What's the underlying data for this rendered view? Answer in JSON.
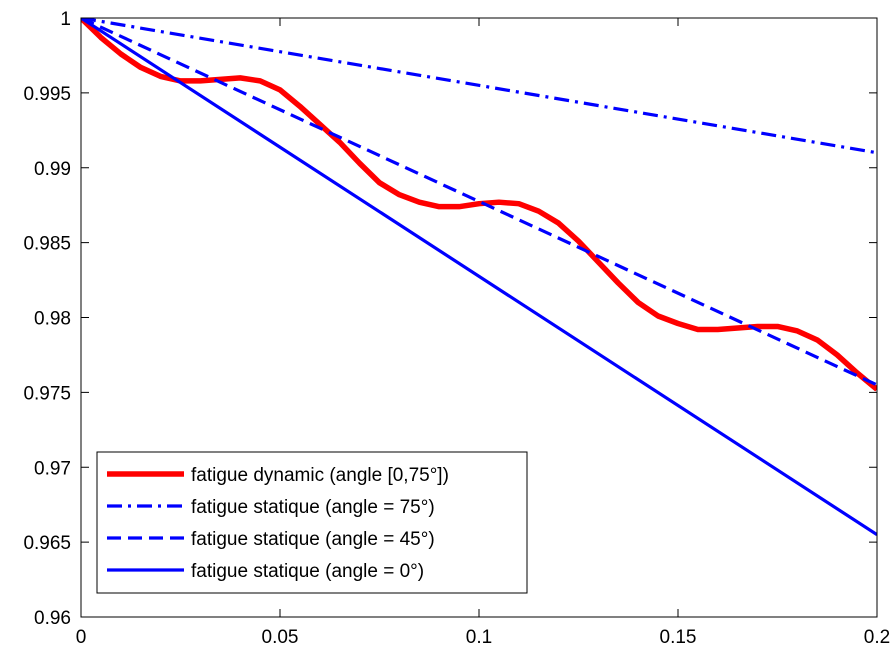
{
  "chart_data": {
    "type": "line",
    "title": "",
    "xlabel": "",
    "ylabel": "",
    "xlim": [
      0,
      0.2
    ],
    "ylim": [
      0.96,
      1
    ],
    "xticks": [
      0,
      0.05,
      0.1,
      0.15,
      0.2
    ],
    "xtick_labels": [
      "0",
      "0.05",
      "0.1",
      "0.15",
      "0.2"
    ],
    "yticks": [
      0.96,
      0.965,
      0.97,
      0.975,
      0.98,
      0.985,
      0.99,
      0.995,
      1
    ],
    "ytick_labels": [
      "0.96",
      "0.965",
      "0.97",
      "0.975",
      "0.98",
      "0.985",
      "0.99",
      "0.995",
      "1"
    ],
    "grid": false,
    "legend_position": "bottom-left",
    "series": [
      {
        "name": "fatigue dynamic (angle [0,75°])",
        "color": "#ff0000",
        "line_style": "solid-thick",
        "x": [
          0,
          0.005,
          0.01,
          0.015,
          0.02,
          0.025,
          0.03,
          0.035,
          0.04,
          0.045,
          0.05,
          0.055,
          0.06,
          0.065,
          0.07,
          0.075,
          0.08,
          0.085,
          0.09,
          0.095,
          0.1,
          0.105,
          0.11,
          0.115,
          0.12,
          0.125,
          0.13,
          0.135,
          0.14,
          0.145,
          0.15,
          0.155,
          0.16,
          0.165,
          0.17,
          0.175,
          0.18,
          0.185,
          0.19,
          0.195,
          0.2
        ],
        "y": [
          1,
          0.9987,
          0.9976,
          0.9967,
          0.9961,
          0.9958,
          0.9958,
          0.9959,
          0.996,
          0.9958,
          0.9952,
          0.9941,
          0.9929,
          0.9917,
          0.9903,
          0.989,
          0.9882,
          0.9877,
          0.9874,
          0.9874,
          0.9876,
          0.9877,
          0.9876,
          0.9871,
          0.9863,
          0.9851,
          0.9837,
          0.9823,
          0.981,
          0.9801,
          0.9796,
          0.9792,
          0.9792,
          0.9793,
          0.9794,
          0.9794,
          0.9791,
          0.9785,
          0.9775,
          0.9763,
          0.9752
        ]
      },
      {
        "name": "fatigue statique (angle = 75°)",
        "color": "#0000ff",
        "line_style": "dash-dot",
        "x": [
          0,
          0.2
        ],
        "y": [
          1,
          0.991
        ]
      },
      {
        "name": "fatigue statique (angle = 45°)",
        "color": "#0000ff",
        "line_style": "dashed",
        "x": [
          0,
          0.2
        ],
        "y": [
          1,
          0.9755
        ]
      },
      {
        "name": "fatigue statique (angle = 0°)",
        "color": "#0000ff",
        "line_style": "solid",
        "x": [
          0,
          0.2
        ],
        "y": [
          1,
          0.9655
        ]
      }
    ]
  }
}
